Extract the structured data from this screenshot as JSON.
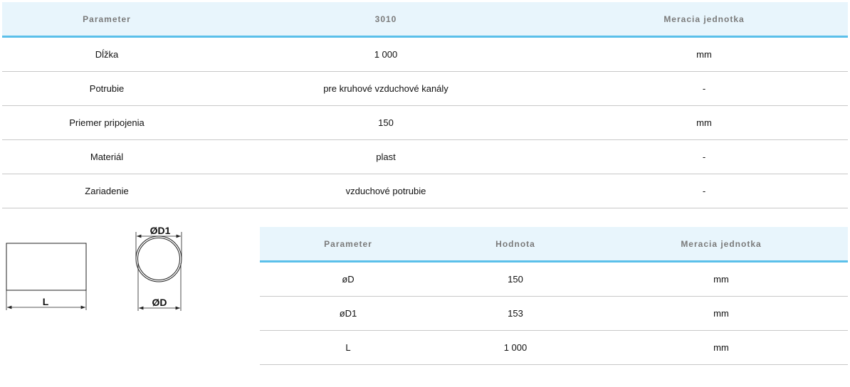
{
  "main_table": {
    "headers": [
      "Parameter",
      "3010",
      "Meracia jednotka"
    ],
    "rows": [
      [
        "Dĺžka",
        "1 000",
        "mm"
      ],
      [
        "Potrubie",
        "pre kruhové vzduchové kanály",
        "-"
      ],
      [
        "Priemer pripojenia",
        "150",
        "mm"
      ],
      [
        "Materiál",
        "plast",
        "-"
      ],
      [
        "Zariadenie",
        "vzduchové potrubie",
        "-"
      ]
    ]
  },
  "drawing": {
    "label_length": "L",
    "label_d1": "ØD1",
    "label_d": "ØD"
  },
  "dimension_table": {
    "headers": [
      "Parameter",
      "Hodnota",
      "Meracia jednotka"
    ],
    "rows": [
      [
        "øD",
        "150",
        "mm"
      ],
      [
        "øD1",
        "153",
        "mm"
      ],
      [
        "L",
        "1 000",
        "mm"
      ]
    ]
  },
  "colors": {
    "header_bg": "#e8f5fc",
    "header_border": "#5bc0ea"
  }
}
